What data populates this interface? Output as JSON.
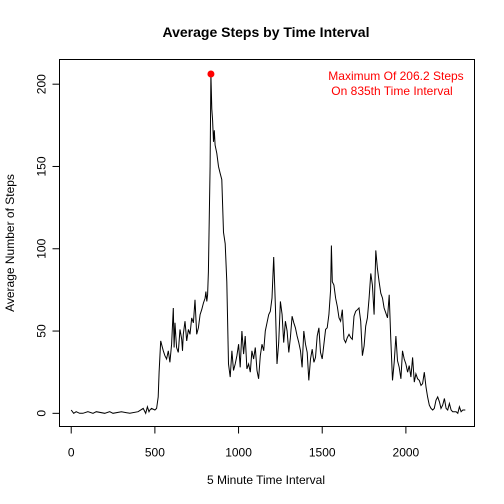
{
  "chart_data": {
    "type": "line",
    "title": "Average Steps by Time Interval",
    "xlabel": "5 Minute Time Interval",
    "ylabel": "Average Number of Steps",
    "xlim": [
      -70,
      2410
    ],
    "ylim": [
      -8,
      215
    ],
    "x_ticks": [
      0,
      500,
      1000,
      1500,
      2000
    ],
    "y_ticks": [
      0,
      50,
      100,
      150,
      200
    ],
    "grid": false,
    "series": [
      {
        "color": "#000000",
        "x": [
          0,
          15,
          30,
          50,
          70,
          100,
          130,
          150,
          200,
          230,
          250,
          300,
          350,
          400,
          430,
          445,
          455,
          465,
          470,
          480,
          500,
          510,
          520,
          525,
          535,
          545,
          550,
          560,
          570,
          580,
          590,
          600,
          610,
          615,
          620,
          625,
          630,
          640,
          650,
          660,
          665,
          670,
          680,
          690,
          700,
          710,
          720,
          730,
          740,
          750,
          760,
          770,
          780,
          790,
          800,
          805,
          810,
          815,
          820,
          825,
          830,
          835,
          840,
          845,
          850,
          855,
          860,
          870,
          880,
          890,
          900,
          910,
          920,
          930,
          940,
          950,
          960,
          970,
          980,
          990,
          1000,
          1010,
          1020,
          1030,
          1040,
          1050,
          1060,
          1070,
          1080,
          1090,
          1100,
          1110,
          1120,
          1130,
          1140,
          1150,
          1160,
          1170,
          1180,
          1190,
          1200,
          1210,
          1220,
          1230,
          1240,
          1250,
          1260,
          1270,
          1280,
          1290,
          1300,
          1310,
          1320,
          1330,
          1340,
          1350,
          1360,
          1370,
          1380,
          1390,
          1400,
          1410,
          1420,
          1430,
          1440,
          1450,
          1460,
          1470,
          1480,
          1490,
          1500,
          1510,
          1520,
          1530,
          1540,
          1550,
          1555,
          1560,
          1570,
          1580,
          1590,
          1600,
          1610,
          1620,
          1630,
          1640,
          1650,
          1660,
          1670,
          1680,
          1690,
          1700,
          1710,
          1720,
          1730,
          1740,
          1750,
          1760,
          1770,
          1780,
          1790,
          1800,
          1810,
          1820,
          1830,
          1840,
          1850,
          1860,
          1870,
          1880,
          1890,
          1900,
          1910,
          1920,
          1930,
          1940,
          1950,
          1960,
          1970,
          1980,
          1990,
          2000,
          2010,
          2020,
          2030,
          2040,
          2050,
          2060,
          2070,
          2080,
          2090,
          2100,
          2110,
          2120,
          2130,
          2140,
          2150,
          2160,
          2170,
          2180,
          2190,
          2200,
          2210,
          2220,
          2230,
          2240,
          2250,
          2260,
          2270,
          2280,
          2290,
          2300,
          2310,
          2320,
          2330,
          2340,
          2355
        ],
        "values": [
          2,
          0,
          1,
          0,
          0,
          1,
          0,
          1,
          0,
          1,
          0,
          1,
          0,
          1,
          3,
          0,
          4,
          1,
          2,
          3,
          2,
          3,
          10,
          25,
          44,
          40,
          38,
          35,
          33,
          38,
          31,
          42,
          64,
          40,
          55,
          47,
          40,
          37,
          51,
          45,
          38,
          48,
          56,
          44,
          51,
          48,
          58,
          55,
          69,
          48,
          52,
          60,
          63,
          67,
          70,
          74,
          68,
          72,
          86,
          120,
          150,
          206,
          185,
          178,
          165,
          172,
          163,
          158,
          150,
          146,
          142,
          110,
          103,
          80,
          30,
          22,
          38,
          26,
          30,
          35,
          42,
          28,
          50,
          36,
          47,
          27,
          30,
          25,
          38,
          33,
          40,
          26,
          21,
          35,
          42,
          38,
          50,
          55,
          60,
          62,
          70,
          95,
          65,
          30,
          43,
          68,
          60,
          43,
          56,
          50,
          37,
          46,
          59,
          55,
          52,
          47,
          43,
          38,
          28,
          50,
          42,
          37,
          20,
          33,
          39,
          31,
          34,
          47,
          52,
          37,
          33,
          42,
          51,
          52,
          60,
          75,
          102,
          80,
          78,
          70,
          65,
          58,
          56,
          63,
          45,
          43,
          46,
          48,
          46,
          45,
          59,
          62,
          63,
          64,
          56,
          35,
          41,
          53,
          58,
          70,
          85,
          78,
          60,
          99,
          88,
          80,
          73,
          70,
          64,
          61,
          58,
          72,
          45,
          20,
          31,
          47,
          32,
          28,
          21,
          38,
          33,
          30,
          25,
          29,
          22,
          34,
          19,
          24,
          21,
          20,
          17,
          18,
          25,
          16,
          10,
          5,
          3,
          2,
          3,
          8,
          10,
          7,
          3,
          5,
          9,
          3,
          2,
          6,
          2,
          1,
          1,
          1,
          0,
          4,
          1,
          2,
          2
        ]
      }
    ],
    "highlight": {
      "x": 835,
      "y": 206.2,
      "color": "#ff0000"
    },
    "annotation": {
      "lines": [
        "Maximum Of 206.2 Steps",
        "On 835th Time Interval"
      ],
      "color": "#ff0000",
      "position": "top-right"
    }
  }
}
